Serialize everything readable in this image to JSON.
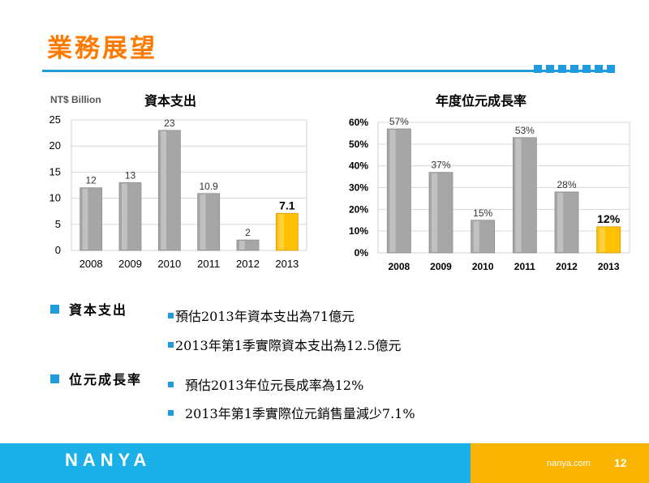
{
  "slide": {
    "title": "業務展望",
    "page_number": "12"
  },
  "chart_data": [
    {
      "type": "bar",
      "title": "資本支出",
      "ylabel": "NT$ Billion",
      "categories": [
        "2008",
        "2009",
        "2010",
        "2011",
        "2012",
        "2013"
      ],
      "values": [
        12,
        13,
        23,
        10.9,
        2,
        7.1
      ],
      "data_labels": [
        "12",
        "13",
        "23",
        "10.9",
        "2",
        "7.1"
      ],
      "ylim": [
        0,
        25
      ],
      "yticks": [
        "0",
        "5",
        "10",
        "15",
        "20",
        "25"
      ],
      "grid": true,
      "bar_color": "#a6a6a6",
      "highlight_color": "#ffc000",
      "highlight_index": 5
    },
    {
      "type": "bar",
      "title": "年度位元成長率",
      "categories": [
        "2008",
        "2009",
        "2010",
        "2011",
        "2012",
        "2013"
      ],
      "values": [
        57,
        37,
        15,
        53,
        28,
        12
      ],
      "data_labels": [
        "57%",
        "37%",
        "15%",
        "53%",
        "28%",
        "12%"
      ],
      "ylim": [
        0,
        60
      ],
      "yticks": [
        "0%",
        "10%",
        "20%",
        "30%",
        "40%",
        "50%",
        "60%"
      ],
      "grid": true,
      "bar_color": "#a6a6a6",
      "highlight_color": "#ffc000",
      "highlight_index": 5
    }
  ],
  "sections": [
    {
      "heading": "資本支出",
      "bullets": [
        "預估2013年資本支出為71億元",
        "2013年第1季實際資本支出為12.5億元"
      ]
    },
    {
      "heading": "位元成長率",
      "bullets": [
        "預估2013年位元長成率為12%",
        "2013年第1季實際位元銷售量減少7.1%"
      ]
    }
  ],
  "footer": {
    "logo_text": "NANYA",
    "website": "nanya.com",
    "blue_color": "#1bb0e8",
    "orange_color": "#f8b400"
  }
}
